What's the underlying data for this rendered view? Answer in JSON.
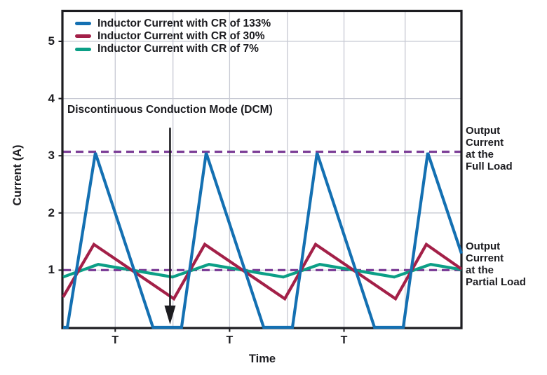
{
  "figure": {
    "background": "#ffffff",
    "text_color": "#1c1c20",
    "gridline_color": "#c7c9d3",
    "border_color": "#1c1c20"
  },
  "annotations": {
    "dcm": "Discontinuous Conduction Mode (DCM)",
    "full_load": "Output\nCurrent\nat the\nFull Load",
    "partial_load": "Output\nCurrent\nat the\nPartial Load"
  },
  "axes": {
    "y_label": "Current (A)",
    "x_label": "Time"
  },
  "chart_data": {
    "type": "line",
    "title": "",
    "xlabel": "Time",
    "ylabel": "Current (A)",
    "x_unit": "T (switching period)",
    "xlim": [
      0,
      3.517
    ],
    "ylim": [
      0,
      5.54
    ],
    "yticks": [
      1,
      2,
      3,
      4,
      5
    ],
    "grid": true,
    "x_gridlines_t": [
      0.46,
      0.97,
      1.47,
      1.98,
      2.48,
      3.02
    ],
    "x_tick_labels": [
      {
        "label": "T",
        "t": 0.46
      },
      {
        "label": "T",
        "t": 1.47
      },
      {
        "label": "T",
        "t": 2.48
      }
    ],
    "legend_position": "top-left-inside",
    "series": [
      {
        "name": "Inductor Current with CR of 133%",
        "color": "#1470b2",
        "points": [
          [
            0,
            0
          ],
          [
            0.037,
            0
          ],
          [
            0.285,
            3.05
          ],
          [
            0.793,
            0
          ],
          [
            1.046,
            0
          ],
          [
            1.263,
            3.05
          ],
          [
            1.771,
            0
          ],
          [
            2.025,
            0
          ],
          [
            2.242,
            3.05
          ],
          [
            2.749,
            0
          ],
          [
            3.003,
            0
          ],
          [
            3.22,
            3.05
          ],
          [
            3.517,
            1.29
          ]
        ]
      },
      {
        "name": "Inductor Current with CR of 30%",
        "color": "#a32048",
        "points": [
          [
            0,
            0.53
          ],
          [
            0.272,
            1.45
          ],
          [
            0.978,
            0.5
          ],
          [
            1.251,
            1.45
          ],
          [
            1.957,
            0.5
          ],
          [
            2.229,
            1.45
          ],
          [
            2.935,
            0.5
          ],
          [
            3.207,
            1.45
          ],
          [
            3.517,
            1.02
          ]
        ]
      },
      {
        "name": "Inductor Current with CR of 7%",
        "color": "#0b9f86",
        "points": [
          [
            0,
            0.88
          ],
          [
            0.31,
            1.1
          ],
          [
            0.966,
            0.88
          ],
          [
            1.288,
            1.1
          ],
          [
            1.944,
            0.88
          ],
          [
            2.266,
            1.1
          ],
          [
            2.923,
            0.88
          ],
          [
            3.245,
            1.1
          ],
          [
            3.517,
            1.01
          ]
        ]
      }
    ],
    "reference_lines": [
      {
        "label": "Output Current at the Full Load",
        "value": 3.07,
        "color": "#7c3e97",
        "style": "dashed"
      },
      {
        "label": "Output Current at the Partial Load",
        "value": 1.0,
        "color": "#7c3e97",
        "style": "dashed"
      }
    ],
    "dcm_annotation": {
      "text": "Discontinuous Conduction Mode (DCM)",
      "arrow_t": 0.944,
      "arrow_from_current": 3.49,
      "arrow_to_current": 0.05
    }
  }
}
